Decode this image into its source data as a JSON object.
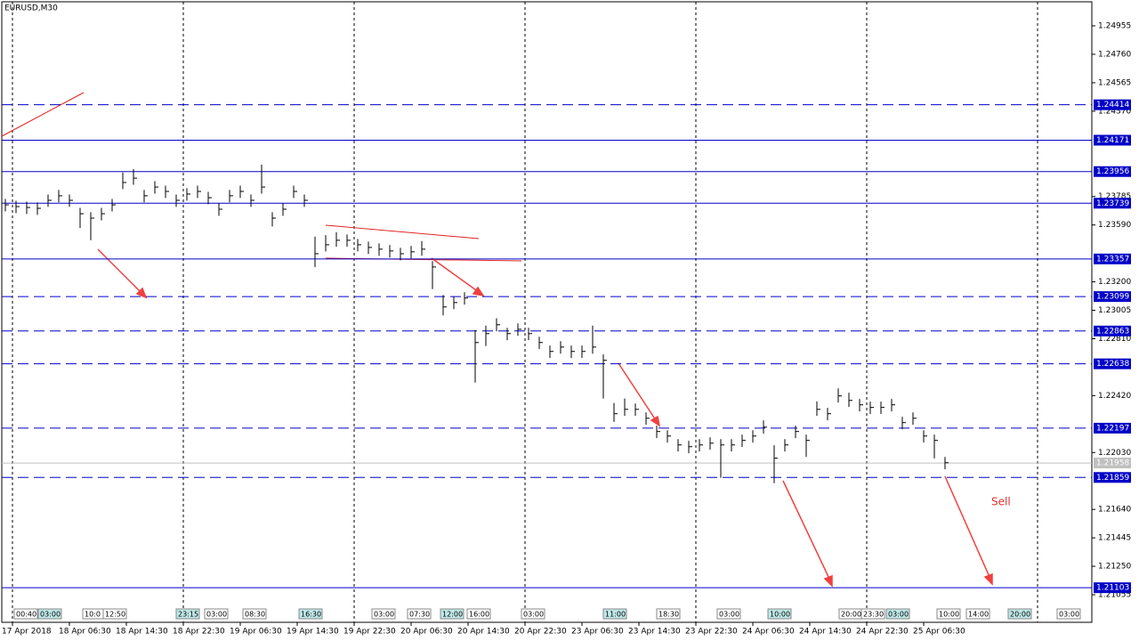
{
  "chart_data": {
    "type": "ohlc",
    "title": "EURUSD,M30",
    "annotation": "Sell",
    "color": "#000000",
    "values": [
      1.23728,
      1.23716,
      1.2371,
      1.23704,
      1.23759,
      1.2379,
      1.23759,
      1.23667,
      1.23637,
      1.23667,
      1.23728,
      1.23881,
      1.23911,
      1.2379,
      1.2385,
      1.2382,
      1.23759,
      1.23802,
      1.2382,
      1.23777,
      1.23698,
      1.2379,
      1.2382,
      1.23759,
      1.2385,
      1.23637,
      1.23698,
      1.2382,
      1.23759,
      1.23393,
      1.23454,
      1.23485,
      1.23485,
      1.23454,
      1.23436,
      1.23424,
      1.23412,
      1.23393,
      1.23406,
      1.23424,
      1.23302,
      1.23028,
      1.23058,
      1.23089,
      1.22784,
      1.22845,
      1.22906,
      1.22845,
      1.22875,
      1.22845,
      1.22784,
      1.22723,
      1.22753,
      1.22723,
      1.22723,
      1.22753,
      1.22662,
      1.22296,
      1.22326,
      1.22326,
      1.22265,
      1.22174,
      1.22143,
      1.22082,
      1.2207,
      1.22082,
      1.22094,
      1.22082,
      1.22082,
      1.22113,
      1.22143,
      1.22204,
      1.21991,
      1.22082,
      1.22174,
      1.22113,
      1.22326,
      1.22296,
      1.22418,
      1.22387,
      1.22357,
      1.22339,
      1.22339,
      1.22357,
      1.22235,
      1.22265,
      1.22143,
      1.22113,
      1.2196
    ],
    "high": [
      1.23768,
      1.23756,
      1.2375,
      1.23744,
      1.23799,
      1.2383,
      1.23799,
      1.23707,
      1.23677,
      1.23707,
      1.23768,
      1.2395,
      1.23973,
      1.2383,
      1.2389,
      1.2386,
      1.23799,
      1.23842,
      1.2386,
      1.23817,
      1.23738,
      1.2383,
      1.2386,
      1.23799,
      1.24004,
      1.23677,
      1.23738,
      1.2386,
      1.23799,
      1.2351,
      1.2352,
      1.2354,
      1.23525,
      1.23494,
      1.23476,
      1.23464,
      1.23452,
      1.23433,
      1.23446,
      1.2348,
      1.23342,
      1.2311,
      1.23098,
      1.23129,
      1.2287,
      1.229,
      1.2295,
      1.22885,
      1.22915,
      1.22885,
      1.22824,
      1.22763,
      1.22793,
      1.22763,
      1.22763,
      1.229,
      1.22702,
      1.2237,
      1.224,
      1.22366,
      1.22305,
      1.22214,
      1.22183,
      1.22122,
      1.2211,
      1.22122,
      1.22134,
      1.22122,
      1.22122,
      1.22153,
      1.22183,
      1.2225,
      1.2208,
      1.22122,
      1.22214,
      1.22153,
      1.2238,
      1.22336,
      1.2247,
      1.2244,
      1.22397,
      1.22379,
      1.22379,
      1.22397,
      1.22275,
      1.22305,
      1.22183,
      1.22153,
      1.22
    ],
    "low": [
      1.23683,
      1.23671,
      1.23665,
      1.23659,
      1.23714,
      1.23745,
      1.23714,
      1.2357,
      1.23485,
      1.23622,
      1.23683,
      1.23836,
      1.23866,
      1.23745,
      1.23805,
      1.23775,
      1.23714,
      1.23757,
      1.23775,
      1.23732,
      1.23653,
      1.23745,
      1.23775,
      1.23714,
      1.23805,
      1.2358,
      1.23653,
      1.23775,
      1.23714,
      1.23302,
      1.23409,
      1.2344,
      1.2344,
      1.23409,
      1.23391,
      1.23379,
      1.23367,
      1.23348,
      1.23361,
      1.23379,
      1.2315,
      1.2297,
      1.23013,
      1.23044,
      1.22509,
      1.2276,
      1.22861,
      1.228,
      1.2283,
      1.228,
      1.22739,
      1.22678,
      1.22708,
      1.22678,
      1.22678,
      1.22708,
      1.224,
      1.2224,
      1.22281,
      1.22281,
      1.2222,
      1.22129,
      1.22098,
      1.22037,
      1.22025,
      1.22037,
      1.22049,
      1.21857,
      1.22037,
      1.22068,
      1.22098,
      1.22159,
      1.2182,
      1.22037,
      1.22129,
      1.22,
      1.22281,
      1.22251,
      1.22373,
      1.22342,
      1.22312,
      1.22294,
      1.22294,
      1.22312,
      1.2219,
      1.2222,
      1.22098,
      1.2199,
      1.21915
    ],
    "x_labels": [
      "17 Apr 2018",
      "18 Apr 06:30",
      "18 Apr 14:30",
      "18 Apr 22:30",
      "19 Apr 06:30",
      "19 Apr 14:30",
      "19 Apr 22:30",
      "20 Apr 06:30",
      "20 Apr 14:30",
      "20 Apr 22:30",
      "23 Apr 06:30",
      "23 Apr 14:30",
      "23 Apr 22:30",
      "24 Apr 06:30",
      "24 Apr 14:30",
      "24 Apr 22:30",
      "25 Apr 06:30"
    ],
    "events": [
      "00:40",
      "03:00",
      "10:0",
      "12:50",
      "23:15",
      "03:00",
      "08:30",
      "16:30",
      "03:00",
      "07:30",
      "12:00",
      "16:00",
      "03:00",
      "11:00",
      "18:30",
      "03:00",
      "10:00",
      "20:00",
      "23:30",
      "03:00",
      "10:00",
      "14:00",
      "20:00",
      "03:00"
    ],
    "ylim": [
      1.20866,
      1.2512
    ],
    "yticks": [
      1.24955,
      {
        "value": 1.2476,
        "label": "1.24760"
      },
      1.24565,
      {
        "value": 1.2437,
        "label": "1.24370"
      },
      1.23785,
      {
        "value": 1.2359,
        "label": "1.23590"
      },
      {
        "value": 1.232,
        "label": "1.23200"
      },
      1.23005,
      {
        "value": 1.2281,
        "label": "1.22810"
      },
      {
        "value": 1.2242,
        "label": "1.22420"
      },
      {
        "value": 1.2203,
        "label": "1.22030"
      },
      {
        "value": 1.2164,
        "label": "1.21640"
      },
      1.21445,
      {
        "value": 1.2125,
        "label": "1.21250"
      },
      1.21055
    ],
    "levels": [
      {
        "value": 1.24414,
        "style": "dashed"
      },
      {
        "value": 1.24171,
        "style": "solid"
      },
      {
        "value": 1.23956,
        "style": "solid"
      },
      {
        "value": 1.23739,
        "style": "solid"
      },
      {
        "value": 1.23357,
        "style": "solid"
      },
      {
        "value": 1.23099,
        "style": "dashed"
      },
      {
        "value": 1.22863,
        "style": "dashed"
      },
      {
        "value": 1.22638,
        "style": "dashed"
      },
      {
        "value": 1.22197,
        "style": "dashed"
      },
      {
        "value": 1.21859,
        "style": "dashed"
      },
      {
        "value": 1.21103,
        "style": "solid"
      }
    ],
    "level_color": "#0000c8",
    "current_price": 1.21958
  }
}
